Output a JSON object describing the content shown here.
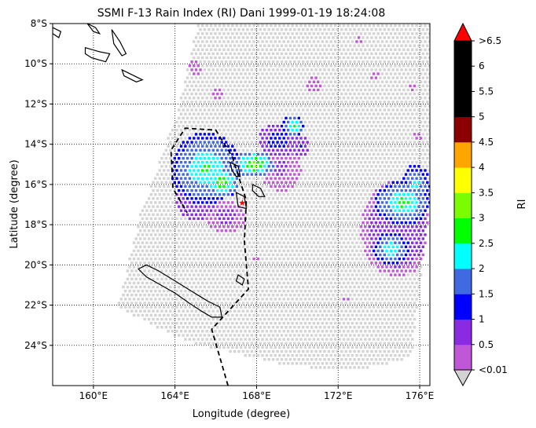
{
  "chart_data": {
    "type": "heatmap",
    "title": "SSMI F-13 Rain Index (RI) Dani 1999-01-19 18:24:08",
    "xlabel": "Longitude (degree)",
    "ylabel": "Latitude (degree)",
    "colorbar_label": "RI",
    "xlim": [
      158,
      176.5
    ],
    "ylim": [
      -26,
      -8
    ],
    "grid": true,
    "x_ticks": [
      {
        "value": 160,
        "label": "160°E"
      },
      {
        "value": 164,
        "label": "164°E"
      },
      {
        "value": 168,
        "label": "168°E"
      },
      {
        "value": 172,
        "label": "172°E"
      },
      {
        "value": 176,
        "label": "176°E"
      }
    ],
    "y_ticks": [
      {
        "value": -8,
        "label": "8°S"
      },
      {
        "value": -10,
        "label": "10°S"
      },
      {
        "value": -12,
        "label": "12°S"
      },
      {
        "value": -14,
        "label": "14°S"
      },
      {
        "value": -16,
        "label": "16°S"
      },
      {
        "value": -18,
        "label": "18°S"
      },
      {
        "value": -20,
        "label": "20°S"
      },
      {
        "value": -22,
        "label": "22°S"
      },
      {
        "value": -24,
        "label": "24°S"
      }
    ],
    "colorbar_levels": [
      "<0.01",
      "0.5",
      "1",
      "1.5",
      "2",
      "2.5",
      "3",
      "3.5",
      "4",
      "4.5",
      "5",
      "5.5",
      "6",
      ">6.5"
    ],
    "colorbar_colors": [
      "#c057d6",
      "#8a2be2",
      "#0000ff",
      "#4169e1",
      "#00ffff",
      "#00ff00",
      "#7cfc00",
      "#ffff00",
      "#ffa500",
      "#8b0000",
      "#000000",
      "#000000",
      "#000000"
    ],
    "colorbar_under_color": "#d3d3d3",
    "colorbar_over_color": "#ff0000",
    "no_rain_color": "#d3d3d3",
    "swath_lon_lat": [
      [
        173.3,
        -8
      ],
      [
        176.5,
        -8
      ],
      [
        176.5,
        -17
      ],
      [
        175.6,
        -24.6
      ],
      [
        172.8,
        -25.3
      ],
      [
        169.5,
        -25
      ],
      [
        164.5,
        -23.8
      ],
      [
        161.2,
        -22.1
      ],
      [
        162.3,
        -17.5
      ],
      [
        164.1,
        -12.5
      ],
      [
        165.1,
        -8.1
      ]
    ],
    "rain_cells": [
      {
        "lon": 165.5,
        "lat": -15.2,
        "rlon": 1.7,
        "rlat": 1.8,
        "ri": 2.7
      },
      {
        "lon": 166.3,
        "lat": -15.9,
        "rlon": 0.8,
        "rlat": 0.8,
        "ri": 3.3
      },
      {
        "lon": 165.0,
        "lat": -16.6,
        "rlon": 1.0,
        "rlat": 1.2,
        "ri": 1.2
      },
      {
        "lon": 166.5,
        "lat": -17.6,
        "rlon": 1.0,
        "rlat": 0.8,
        "ri": 0.7
      },
      {
        "lon": 167.9,
        "lat": -15.0,
        "rlon": 1.0,
        "rlat": 0.7,
        "ri": 3.3
      },
      {
        "lon": 169.0,
        "lat": -13.8,
        "rlon": 0.9,
        "rlat": 0.9,
        "ri": 1.4
      },
      {
        "lon": 169.2,
        "lat": -15.2,
        "rlon": 1.1,
        "rlat": 1.3,
        "ri": 0.6
      },
      {
        "lon": 169.8,
        "lat": -13.1,
        "rlon": 0.6,
        "rlat": 0.6,
        "ri": 2.7
      },
      {
        "lon": 170.2,
        "lat": -14.1,
        "rlon": 0.4,
        "rlat": 0.6,
        "ri": 1.2
      },
      {
        "lon": 175.2,
        "lat": -16.9,
        "rlon": 1.4,
        "rlat": 1.1,
        "ri": 2.8
      },
      {
        "lon": 175.8,
        "lat": -16.0,
        "rlon": 0.7,
        "rlat": 1.0,
        "ri": 2.4
      },
      {
        "lon": 174.6,
        "lat": -19.2,
        "rlon": 0.9,
        "rlat": 0.8,
        "ri": 2.6
      },
      {
        "lon": 174.9,
        "lat": -18.2,
        "rlon": 1.8,
        "rlat": 2.4,
        "ri": 0.9
      },
      {
        "lon": 165.0,
        "lat": -10.2,
        "rlon": 0.7,
        "rlat": 0.8,
        "ri": 0.4
      },
      {
        "lon": 166.1,
        "lat": -11.5,
        "rlon": 0.5,
        "rlat": 0.4,
        "ri": 0.5
      },
      {
        "lon": 170.8,
        "lat": -11.0,
        "rlon": 0.8,
        "rlat": 1.0,
        "ri": 0.4
      },
      {
        "lon": 173.8,
        "lat": -10.6,
        "rlon": 0.6,
        "rlat": 0.6,
        "ri": 0.4
      },
      {
        "lon": 175.9,
        "lat": -13.6,
        "rlon": 0.5,
        "rlat": 0.6,
        "ri": 0.4
      },
      {
        "lon": 175.6,
        "lat": -11.2,
        "rlon": 0.4,
        "rlat": 0.5,
        "ri": 0.4
      },
      {
        "lon": 168.0,
        "lat": -19.7,
        "rlon": 0.6,
        "rlat": 0.4,
        "ri": 0.4
      },
      {
        "lon": 172.4,
        "lat": -21.7,
        "rlon": 0.5,
        "rlat": 0.4,
        "ri": 0.4
      },
      {
        "lon": 173.0,
        "lat": -8.8,
        "rlon": 0.4,
        "rlat": 0.4,
        "ri": 0.4
      }
    ],
    "track_lon_lat": [
      [
        166.6,
        -26
      ],
      [
        165.8,
        -23.2
      ],
      [
        167.6,
        -21.2
      ],
      [
        167.4,
        -18.8
      ],
      [
        167.5,
        -16.8
      ],
      [
        166.8,
        -14.6
      ],
      [
        166.0,
        -13.3
      ],
      [
        164.5,
        -13.2
      ],
      [
        163.8,
        -14.3
      ],
      [
        163.9,
        -16.2
      ],
      [
        164.6,
        -17.4
      ]
    ],
    "storm_position": {
      "lon": 167.3,
      "lat": -16.9
    },
    "land_outlines": [
      [
        [
          162.2,
          -20.2
        ],
        [
          162.6,
          -20.6
        ],
        [
          163.3,
          -21.0
        ],
        [
          164.0,
          -21.4
        ],
        [
          164.7,
          -21.9
        ],
        [
          165.3,
          -22.3
        ],
        [
          165.8,
          -22.6
        ],
        [
          166.3,
          -22.6
        ],
        [
          166.2,
          -22.1
        ],
        [
          165.6,
          -21.8
        ],
        [
          164.8,
          -21.3
        ],
        [
          164.0,
          -20.8
        ],
        [
          163.2,
          -20.3
        ],
        [
          162.6,
          -20.0
        ]
      ],
      [
        [
          167.0,
          -20.8
        ],
        [
          167.3,
          -21.0
        ],
        [
          167.4,
          -20.7
        ],
        [
          167.1,
          -20.5
        ]
      ],
      [
        [
          166.7,
          -14.9
        ],
        [
          167.1,
          -15.1
        ],
        [
          167.2,
          -15.6
        ],
        [
          167.0,
          -15.6
        ],
        [
          166.8,
          -15.3
        ]
      ],
      [
        [
          167.8,
          -16.0
        ],
        [
          168.2,
          -16.2
        ],
        [
          168.4,
          -16.6
        ],
        [
          168.1,
          -16.6
        ],
        [
          167.8,
          -16.3
        ]
      ],
      [
        [
          167.0,
          -16.4
        ],
        [
          167.4,
          -16.6
        ],
        [
          167.5,
          -17.2
        ],
        [
          167.1,
          -17.1
        ]
      ],
      [
        [
          158.0,
          -8.2
        ],
        [
          158.4,
          -8.4
        ],
        [
          158.3,
          -8.7
        ],
        [
          158.0,
          -8.5
        ]
      ],
      [
        [
          159.7,
          -8.0
        ],
        [
          160.1,
          -8.2
        ],
        [
          160.3,
          -8.5
        ],
        [
          160.0,
          -8.4
        ]
      ],
      [
        [
          160.9,
          -8.3
        ],
        [
          161.3,
          -8.9
        ],
        [
          161.6,
          -9.5
        ],
        [
          161.4,
          -9.6
        ],
        [
          161.0,
          -9.0
        ]
      ],
      [
        [
          159.6,
          -9.2
        ],
        [
          160.3,
          -9.4
        ],
        [
          160.8,
          -9.5
        ],
        [
          160.6,
          -9.9
        ],
        [
          159.9,
          -9.7
        ],
        [
          159.6,
          -9.5
        ]
      ],
      [
        [
          161.4,
          -10.3
        ],
        [
          162.0,
          -10.6
        ],
        [
          162.4,
          -10.8
        ],
        [
          162.1,
          -10.9
        ],
        [
          161.5,
          -10.6
        ]
      ]
    ]
  }
}
